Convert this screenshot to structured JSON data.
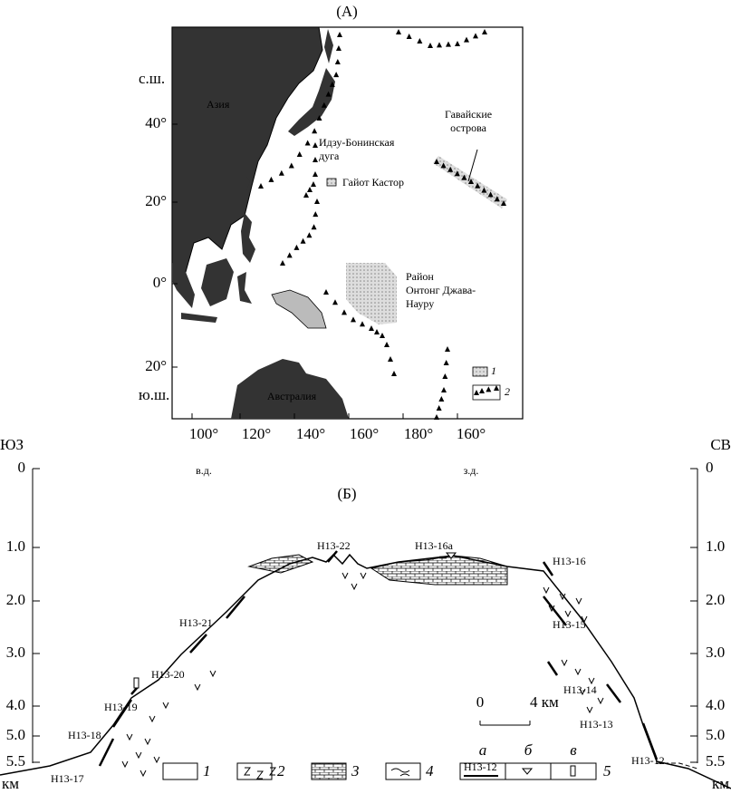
{
  "panel_a": {
    "label": "(А)",
    "lat_labels": [
      "с.ш.",
      "40°",
      "20°",
      "0°",
      "20°",
      "ю.ш."
    ],
    "lon_labels": [
      "100°",
      "120°",
      "140°",
      "160°",
      "180°",
      "160°"
    ],
    "hemispheres": [
      "в.д.",
      "з.д."
    ],
    "places": [
      [
        "Азия"
      ],
      [
        "Идзу-Бонинская",
        "дуга"
      ],
      [
        "Гайот Кастор"
      ],
      [
        "Гавайские",
        "острова"
      ],
      [
        "Район",
        "Онтонг Джава-",
        "Науру"
      ],
      [
        "Австралия"
      ]
    ],
    "legend": [
      "1",
      "2"
    ]
  },
  "panel_b": {
    "label": "(Б)",
    "directions": [
      "ЮЗ",
      "СВ"
    ],
    "depth_left": [
      "0",
      "1.0",
      "2.0",
      "3.0",
      "4.0",
      "5.0",
      "5.5"
    ],
    "depth_right": [
      "0",
      "1.0",
      "2.0",
      "3.0",
      "4.0",
      "5.0",
      "5.5"
    ],
    "unit": "км",
    "stations": [
      "Н13-22",
      "Н13-16а",
      "Н13-16",
      "Н13-21",
      "Н13-15",
      "Н13-20",
      "Н13-19",
      "Н13-14",
      "Н13-18",
      "Н13-13",
      "Н13-17",
      "Н13-12"
    ],
    "scale": [
      "0",
      "4 км"
    ],
    "legend": [
      "1",
      "2",
      "3",
      "4",
      "5"
    ],
    "legend_sub": [
      "а",
      "б",
      "в"
    ],
    "legend_sample": "Н13-12"
  }
}
